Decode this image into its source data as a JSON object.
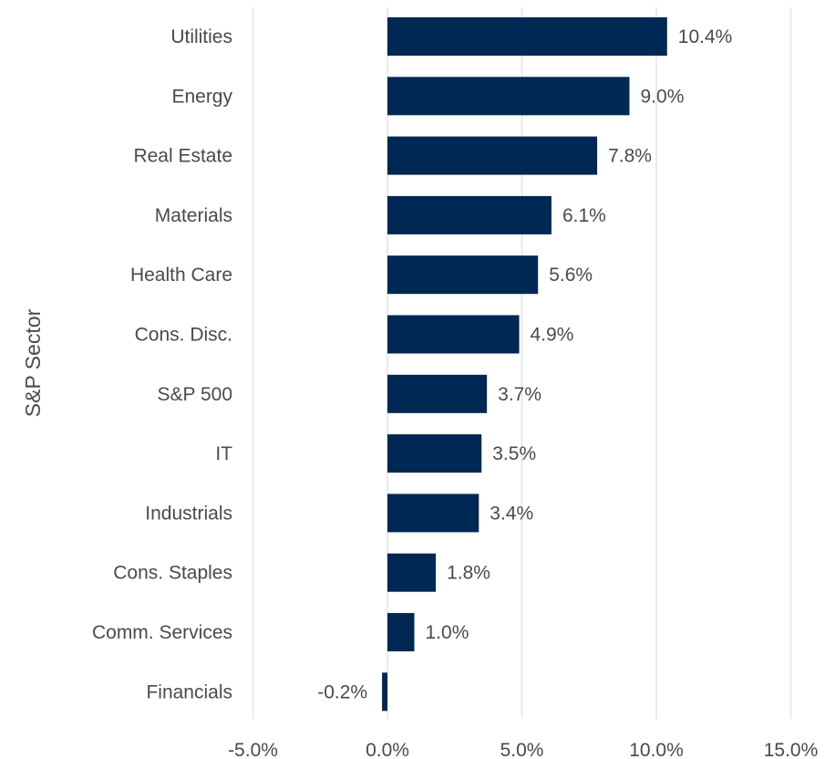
{
  "chart_data": {
    "type": "bar",
    "orientation": "horizontal",
    "ylabel": "S&P Sector",
    "categories": [
      "Utilities",
      "Energy",
      "Real Estate",
      "Materials",
      "Health Care",
      "Cons. Disc.",
      "S&P 500",
      "IT",
      "Industrials",
      "Cons. Staples",
      "Comm. Services",
      "Financials"
    ],
    "values": [
      10.4,
      9.0,
      7.8,
      6.1,
      5.6,
      4.9,
      3.7,
      3.5,
      3.4,
      1.8,
      1.0,
      -0.2
    ],
    "value_labels": [
      "10.4%",
      "9.0%",
      "7.8%",
      "6.1%",
      "5.6%",
      "4.9%",
      "3.7%",
      "3.5%",
      "3.4%",
      "1.8%",
      "1.0%",
      "-0.2%"
    ],
    "xlim": [
      -5,
      15
    ],
    "xticks": [
      -5,
      0,
      5,
      10,
      15
    ],
    "xtick_labels": [
      "-5.0%",
      "0.0%",
      "5.0%",
      "10.0%",
      "15.0%"
    ],
    "grid": "vertical",
    "bar_color": "#002855"
  }
}
